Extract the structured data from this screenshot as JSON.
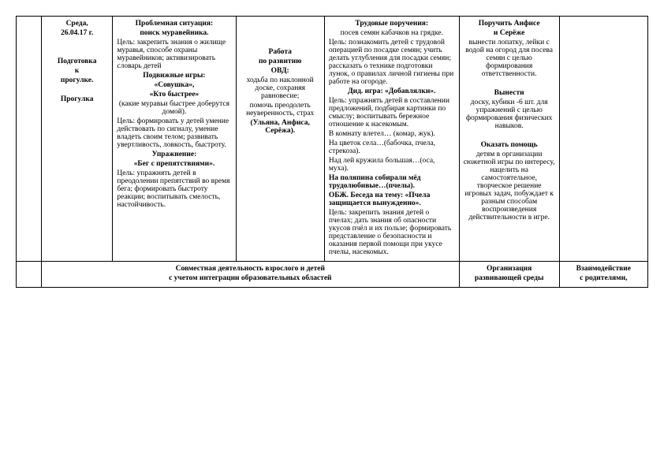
{
  "row1": {
    "col2": {
      "date1": "Среда,",
      "date2": "26.04.17 г.",
      "prep1": "Подготовка",
      "prep2": "к",
      "prep3": "прогулке.",
      "walk": "Прогулка"
    },
    "col3": {
      "title1": "Проблемная ситуация:",
      "title2": "поиск муравейника.",
      "goal1": "Цель: закрепить знания о жилище муравья, способе охраны муравейников; активизировать словарь детей",
      "games_t": "Подвижные игры:",
      "g1": "«Совушка»,",
      "g2": "«Кто быстрее»",
      "g3": "(какие муравьи быстрее доберутся домой).",
      "goal2": "Цель: формировать у детей умение действовать по сиг­налу, умение владеть своим телом;   развивать увертливость, ловкость, быстроту.",
      "ex_t": "Упражнение:",
      "ex": "«Бег с препятствиями».",
      "goal3": "Цель: упражнять детей в преодолении препятствий во время бега; формировать быстроту реакции; воспитывать смелость, настойчивость."
    },
    "col4": {
      "t1": "Работа",
      "t2": "по развитию",
      "t3": "ОВД:",
      "body": "ходьба по наклонной доске, сохраняя равновесие;",
      "body2": "помочь преодолеть неуверенность, страх",
      "names": "(Ульяна, Анфиса, Серёжа)."
    },
    "col5": {
      "t1": "Трудовые поручения:",
      "t2": "посев семян кабачков на грядке.",
      "g1": "Цель: познакомить детей с трудовой операцией по посадке семян; учить делать углубления для посадки семян; рассказать о технике подготовки лунок, о правилах личной гигиены при работе на огороде.",
      "did_t": "Дид. игра: «Добавлялки».",
      "did_g": "Цель: упражнять детей в составлении предложений, подбирая картинки по смыслу; воспитывать бережное отношение к насекомым.",
      "l1": "В комнату влетел… (комар, жук).",
      "l2": "На цветок села…(бабочка, пчела, стрекоза).",
      "l3": "Над лей кружила большая…(оса, муха).",
      "l4": "На поляпина собирали мёд трудолюбивые…(пчелы).",
      "obj_t": "ОБЖ. Беседа на тему: «Пчела защищается вынужденно».",
      "obj_g": "Цель: закрепить знания детей о пчелах; дать знания об опасности укусов пчёл и их пользе; формировать представление о безопасности и оказания первой помощи при уку­се пчелы, насекомых."
    },
    "col6": {
      "t1": "Поручить Анфисе",
      "t2": "и Серёже",
      "b1": "вынести лопатку, лейки с водой на огород для посева семян с целью формирования ответственности.",
      "t3": "Вынести",
      "b2": "доску, кубики -6 шт. для упражнений с целью формирования физических навыков.",
      "t4": "Оказать помощь",
      "b3": "детям в организации сюжетной игры по интересу, нацелить на самостоятельное, творческое решение игровых задач, побуждает к разным способам воспроизведения действительности в игре."
    }
  },
  "row2": {
    "merged": "Совместная деятельность взрослого и детей",
    "merged2": "с учетом интеграции  образовательных  областей",
    "c6a": "Организация",
    "c6b": "развивающей среды",
    "c7a": "Взаимодействие",
    "c7b": "с родителями,"
  }
}
